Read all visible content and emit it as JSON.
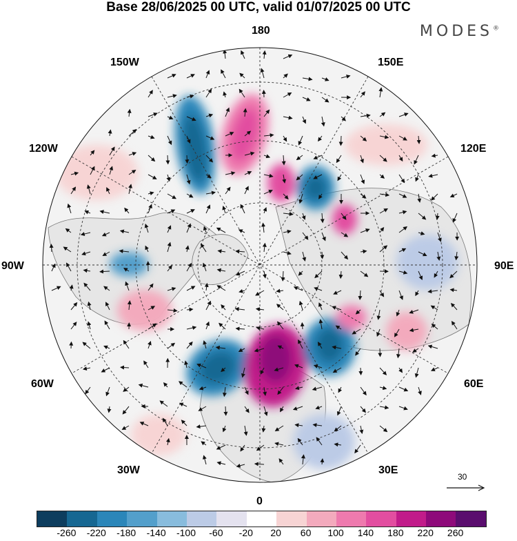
{
  "title": "Base 28/06/2025 00 UTC, valid 01/07/2025 00 UTC",
  "brand": "MODES",
  "brand_mark": "®",
  "map": {
    "projection": "north-polar-stereographic",
    "longitude_labels": {
      "top": "180",
      "top_right": "150E",
      "right_upper": "120E",
      "right": "90E",
      "right_lower": "60E",
      "bottom_right": "30E",
      "bottom": "0",
      "bottom_left": "30W",
      "left_lower": "60W",
      "left": "90W",
      "left_upper": "120W",
      "top_left": "150W"
    },
    "features": [
      "coastlines",
      "graticule-dashed",
      "wind-vectors",
      "anomaly-shading"
    ],
    "vector_reference": "30"
  },
  "colorbar": {
    "colors": [
      "#0d3d5e",
      "#166792",
      "#2b86b9",
      "#539fcb",
      "#88bcdd",
      "#bccbe6",
      "#e4e2ef",
      "#ffffff",
      "#f7d4d4",
      "#f3aabd",
      "#ee7aae",
      "#e24ea0",
      "#c11c8a",
      "#8e0a7a",
      "#5a0d6e"
    ],
    "ticks": [
      "-260",
      "-220",
      "-180",
      "-140",
      "-100",
      "-60",
      "-20",
      "20",
      "60",
      "100",
      "140",
      "180",
      "220",
      "260"
    ]
  }
}
